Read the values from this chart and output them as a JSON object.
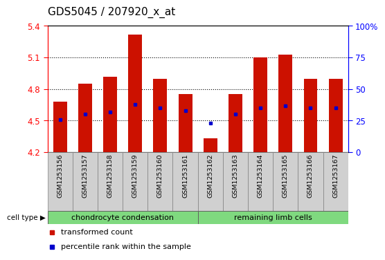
{
  "title": "GDS5045 / 207920_x_at",
  "samples": [
    "GSM1253156",
    "GSM1253157",
    "GSM1253158",
    "GSM1253159",
    "GSM1253160",
    "GSM1253161",
    "GSM1253162",
    "GSM1253163",
    "GSM1253164",
    "GSM1253165",
    "GSM1253166",
    "GSM1253167"
  ],
  "transformed_count": [
    4.68,
    4.85,
    4.92,
    5.32,
    4.9,
    4.75,
    4.33,
    4.75,
    5.1,
    5.13,
    4.9,
    4.9
  ],
  "percentile_rank": [
    26,
    30,
    32,
    38,
    35,
    33,
    23,
    30,
    35,
    37,
    35,
    35
  ],
  "ylim_left": [
    4.2,
    5.4
  ],
  "ylim_right": [
    0,
    100
  ],
  "yticks_left": [
    4.2,
    4.5,
    4.8,
    5.1,
    5.4
  ],
  "yticks_right": [
    0,
    25,
    50,
    75,
    100
  ],
  "ytick_labels_right": [
    "0",
    "25",
    "50",
    "75",
    "100%"
  ],
  "groups": [
    {
      "label": "chondrocyte condensation",
      "count": 6,
      "color": "#7FD97F"
    },
    {
      "label": "remaining limb cells",
      "count": 6,
      "color": "#7FD97F"
    }
  ],
  "bar_color": "#CC1100",
  "dot_color": "#0000CC",
  "bar_width": 0.55,
  "cell_type_label": "cell type",
  "legend_items": [
    {
      "label": "transformed count",
      "color": "#CC1100"
    },
    {
      "label": "percentile rank within the sample",
      "color": "#0000CC"
    }
  ],
  "grid_dotted": [
    4.5,
    4.8,
    5.1
  ],
  "xtick_bg": "#D0D0D0",
  "plot_bg_color": "white",
  "title_fontsize": 11,
  "tick_fontsize": 8.5,
  "sample_fontsize": 6.8,
  "group_fontsize": 8,
  "legend_fontsize": 8
}
